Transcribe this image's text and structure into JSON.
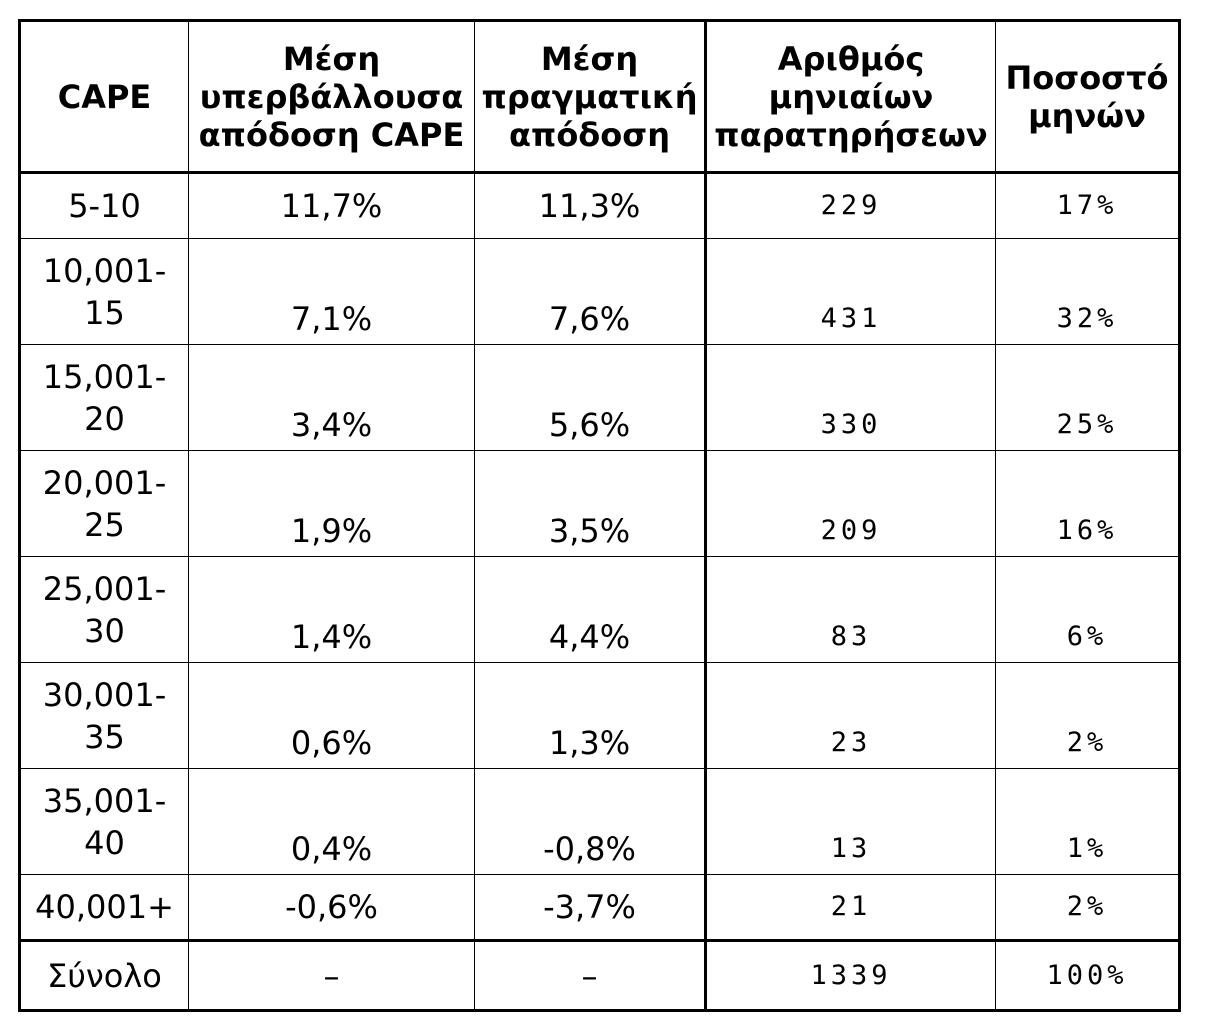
{
  "table": {
    "headers": [
      "CAPE",
      "Μέση υπερβάλλουσα απόδοση CAPE",
      "Μέση πραγματική απόδοση",
      "Αριθμός μηνιαίων παρατηρήσεων",
      "Ποσοστό μηνών"
    ],
    "rows": [
      {
        "range": "5-10",
        "excess": "11,7%",
        "real": "11,3%",
        "count": "229",
        "pct": "17%"
      },
      {
        "range": "10,001-15",
        "excess": "7,1%",
        "real": "7,6%",
        "count": "431",
        "pct": "32%"
      },
      {
        "range": "15,001-20",
        "excess": "3,4%",
        "real": "5,6%",
        "count": "330",
        "pct": "25%"
      },
      {
        "range": "20,001-25",
        "excess": "1,9%",
        "real": "3,5%",
        "count": "209",
        "pct": "16%"
      },
      {
        "range": "25,001-30",
        "excess": "1,4%",
        "real": "4,4%",
        "count": "83",
        "pct": "6%"
      },
      {
        "range": "30,001-35",
        "excess": "0,6%",
        "real": "1,3%",
        "count": "23",
        "pct": "2%"
      },
      {
        "range": "35,001-40",
        "excess": "0,4%",
        "real": "-0,8%",
        "count": "13",
        "pct": "1%"
      },
      {
        "range": "40,001+",
        "excess": "-0,6%",
        "real": "-3,7%",
        "count": "21",
        "pct": "2%"
      }
    ],
    "total": {
      "range": "Σύνολο",
      "excess": "–",
      "real": "–",
      "count": "1339",
      "pct": "100%"
    }
  }
}
